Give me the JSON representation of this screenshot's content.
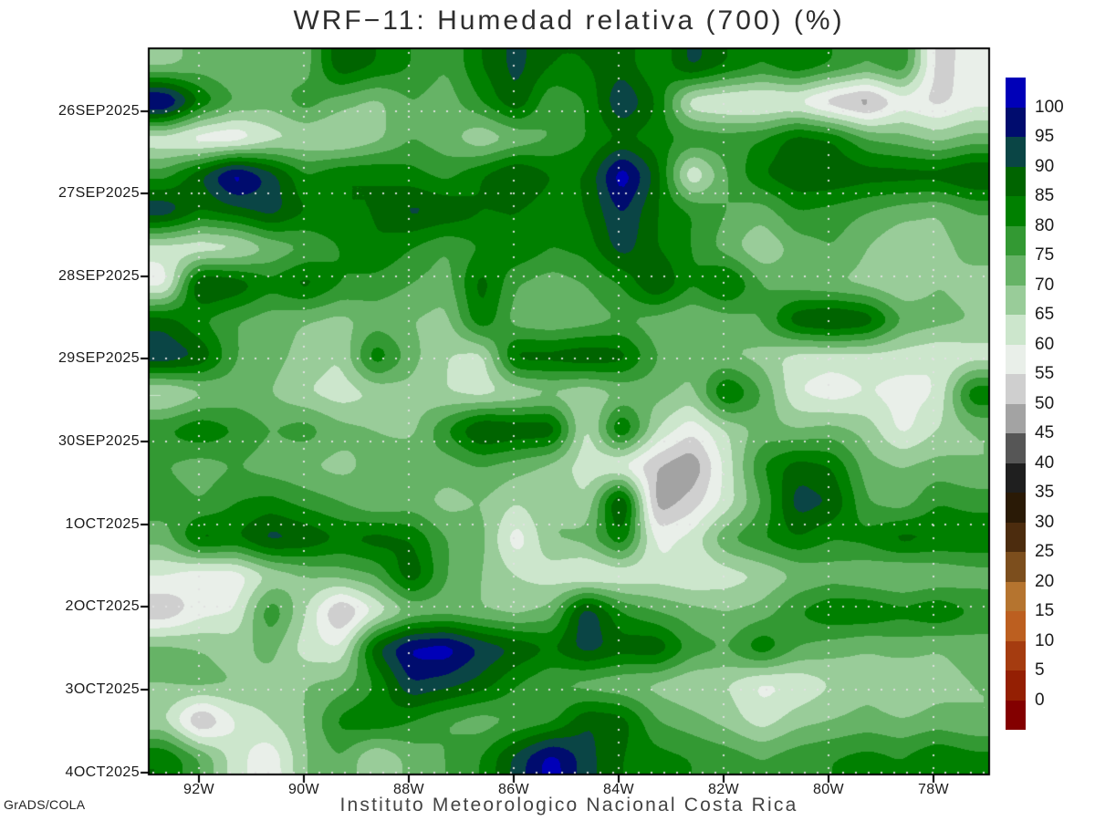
{
  "title": "WRF−11: Humedad relativa (700) (%)",
  "footer": {
    "left": "GrADS/COLA",
    "center": "Instituto Meteorologico Nacional Costa Rica"
  },
  "axes": {
    "y_ticks": [
      "26SEP2025",
      "27SEP2025",
      "28SEP2025",
      "29SEP2025",
      "30SEP2025",
      "1OCT2025",
      "2OCT2025",
      "3OCT2025",
      "4OCT2025"
    ],
    "x_ticks": [
      "92W",
      "90W",
      "88W",
      "86W",
      "84W",
      "82W",
      "80W",
      "78W"
    ]
  },
  "colorbar": {
    "labels_top_to_bottom": [
      "100",
      "95",
      "90",
      "85",
      "80",
      "75",
      "70",
      "65",
      "60",
      "55",
      "50",
      "45",
      "40",
      "35",
      "30",
      "25",
      "20",
      "15",
      "10",
      "5",
      "0"
    ],
    "colors_top_to_bottom": [
      "#0000b8",
      "#000c6e",
      "#0a4545",
      "#006400",
      "#008000",
      "#339933",
      "#66b366",
      "#99cc99",
      "#cce6cc",
      "#e9efe9",
      "#cfcfcf",
      "#a3a3a3",
      "#565656",
      "#1f1f1f",
      "#2a1a06",
      "#4c2c0e",
      "#7c4e1d",
      "#b5742f",
      "#bc5f20",
      "#a53c10",
      "#941f03",
      "#830000"
    ]
  },
  "chart_data": {
    "type": "heatmap",
    "title": "WRF−11: Humedad relativa (700) (%)",
    "units": "%",
    "levels": [
      0,
      5,
      10,
      15,
      20,
      25,
      30,
      35,
      40,
      45,
      50,
      55,
      60,
      65,
      70,
      75,
      80,
      85,
      90,
      95,
      100
    ],
    "palette_low_to_high": [
      "#830000",
      "#941f03",
      "#a53c10",
      "#bc5f20",
      "#b5742f",
      "#7c4e1d",
      "#4c2c0e",
      "#2a1a06",
      "#1f1f1f",
      "#565656",
      "#a3a3a3",
      "#cfcfcf",
      "#e9efe9",
      "#cce6cc",
      "#99cc99",
      "#66b366",
      "#339933",
      "#008000",
      "#006400",
      "#0a4545",
      "#000c6e",
      "#0000b8"
    ],
    "x_axis": {
      "tick_labels": [
        "92W",
        "90W",
        "88W",
        "86W",
        "84W",
        "82W",
        "80W",
        "78W"
      ],
      "lon_range_deg_w": [
        93.0,
        76.9
      ]
    },
    "y_axis": {
      "tick_labels": [
        "26SEP2025",
        "27SEP2025",
        "28SEP2025",
        "29SEP2025",
        "30SEP2025",
        "1OCT2025",
        "2OCT2025",
        "3OCT2025",
        "4OCT2025"
      ]
    },
    "grid": {
      "cols": 24,
      "rows": 20,
      "col_lons_deg_w": [
        92.6,
        92.0,
        91.3,
        90.6,
        90.0,
        89.3,
        88.6,
        88.0,
        87.3,
        86.6,
        85.9,
        85.3,
        84.6,
        83.9,
        83.3,
        82.6,
        81.9,
        81.3,
        80.6,
        79.9,
        79.3,
        78.6,
        77.9,
        77.3
      ],
      "row_time_offset_days_from_26SEP2025": [
        -0.55,
        -0.11,
        0.33,
        0.77,
        1.21,
        1.65,
        2.09,
        2.53,
        2.97,
        3.41,
        3.85,
        4.29,
        4.73,
        5.17,
        5.61,
        6.05,
        6.49,
        6.93,
        7.37,
        7.81
      ],
      "values_percent_rh": [
        [
          68,
          72,
          70,
          75,
          72,
          90,
          85,
          80,
          75,
          85,
          92,
          85,
          85,
          88,
          80,
          92,
          85,
          80,
          85,
          80,
          75,
          80,
          52,
          58
        ],
        [
          105,
          85,
          75,
          72,
          78,
          72,
          68,
          75,
          72,
          80,
          90,
          75,
          80,
          96,
          85,
          60,
          58,
          57,
          58,
          50,
          45,
          57,
          53,
          58
        ],
        [
          60,
          55,
          54,
          62,
          65,
          63,
          68,
          75,
          72,
          65,
          70,
          75,
          80,
          85,
          82,
          80,
          78,
          80,
          88,
          85,
          75,
          72,
          68,
          72
        ],
        [
          78,
          90,
          105,
          93,
          80,
          85,
          85,
          82,
          78,
          85,
          92,
          85,
          85,
          105,
          88,
          58,
          75,
          85,
          90,
          90,
          88,
          88,
          88,
          92
        ],
        [
          95,
          85,
          88,
          93,
          85,
          85,
          85,
          92,
          90,
          85,
          85,
          82,
          85,
          96,
          85,
          80,
          75,
          72,
          80,
          78,
          75,
          72,
          70,
          75
        ],
        [
          62,
          60,
          62,
          70,
          75,
          80,
          85,
          80,
          75,
          80,
          85,
          80,
          82,
          93,
          85,
          80,
          72,
          65,
          72,
          75,
          70,
          65,
          68,
          72
        ],
        [
          57,
          93,
          90,
          82,
          88,
          80,
          78,
          75,
          72,
          88,
          75,
          72,
          75,
          80,
          92,
          80,
          88,
          75,
          72,
          70,
          68,
          65,
          70,
          68
        ],
        [
          88,
          80,
          75,
          72,
          70,
          68,
          72,
          70,
          68,
          85,
          72,
          70,
          72,
          75,
          72,
          70,
          72,
          75,
          90,
          93,
          90,
          75,
          72,
          70
        ],
        [
          95,
          90,
          75,
          72,
          68,
          65,
          85,
          72,
          65,
          62,
          88,
          88,
          90,
          88,
          75,
          72,
          70,
          68,
          62,
          62,
          62,
          62,
          60,
          62
        ],
        [
          62,
          68,
          72,
          70,
          65,
          62,
          65,
          68,
          65,
          62,
          65,
          68,
          65,
          70,
          72,
          68,
          88,
          75,
          60,
          57,
          60,
          58,
          60,
          85
        ],
        [
          80,
          85,
          80,
          75,
          78,
          72,
          70,
          68,
          80,
          93,
          90,
          90,
          62,
          88,
          65,
          56,
          65,
          72,
          70,
          72,
          68,
          58,
          65,
          70
        ],
        [
          75,
          72,
          75,
          72,
          70,
          68,
          72,
          75,
          72,
          75,
          72,
          68,
          62,
          58,
          50,
          45,
          62,
          80,
          88,
          85,
          72,
          70,
          72,
          70
        ],
        [
          78,
          75,
          80,
          82,
          78,
          75,
          70,
          72,
          68,
          70,
          65,
          70,
          65,
          95,
          46,
          52,
          62,
          75,
          93,
          90,
          75,
          72,
          80,
          78
        ],
        [
          72,
          88,
          85,
          93,
          90,
          85,
          88,
          85,
          75,
          72,
          56,
          70,
          72,
          85,
          58,
          62,
          75,
          80,
          85,
          80,
          82,
          88,
          85,
          85
        ],
        [
          60,
          55,
          56,
          65,
          70,
          72,
          75,
          90,
          75,
          70,
          65,
          62,
          58,
          60,
          62,
          60,
          62,
          65,
          70,
          72,
          70,
          68,
          70,
          72
        ],
        [
          50,
          58,
          60,
          80,
          65,
          47,
          60,
          70,
          72,
          70,
          68,
          72,
          95,
          80,
          75,
          72,
          70,
          72,
          80,
          85,
          85,
          82,
          85,
          80
        ],
        [
          72,
          70,
          68,
          72,
          62,
          60,
          90,
          102,
          104,
          95,
          90,
          85,
          93,
          88,
          90,
          78,
          75,
          85,
          75,
          72,
          70,
          72,
          70,
          72
        ],
        [
          70,
          72,
          70,
          68,
          70,
          72,
          80,
          95,
          92,
          88,
          80,
          75,
          72,
          70,
          68,
          65,
          65,
          58,
          60,
          65,
          68,
          65,
          68,
          70
        ],
        [
          65,
          47,
          60,
          65,
          70,
          82,
          85,
          80,
          75,
          72,
          75,
          78,
          90,
          88,
          75,
          72,
          68,
          62,
          68,
          70,
          72,
          70,
          72,
          70
        ],
        [
          85,
          75,
          62,
          56,
          70,
          75,
          64,
          72,
          75,
          80,
          92,
          103,
          92,
          85,
          82,
          80,
          78,
          75,
          78,
          80,
          82,
          80,
          85,
          82
        ]
      ]
    }
  }
}
